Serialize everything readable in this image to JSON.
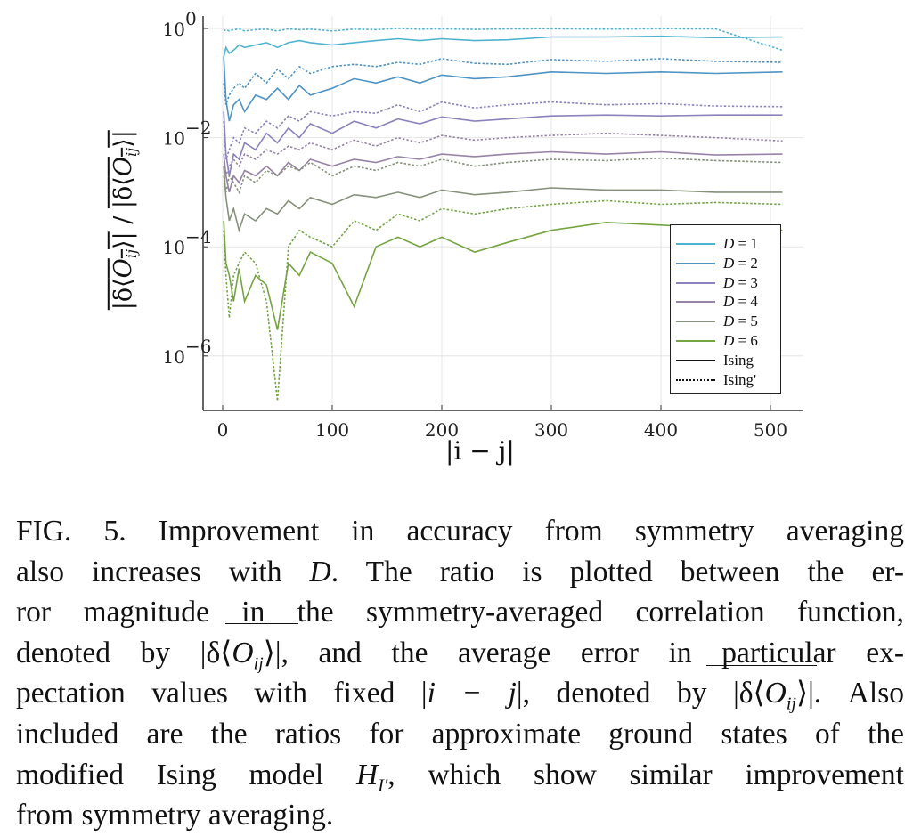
{
  "chart_data": {
    "type": "line",
    "xlabel": "|i − j|",
    "ylabel_parts": [
      "|δ⟨",
      "O",
      "ij",
      "⟩|",
      " / ",
      "|δ⟨",
      "O",
      "ij",
      "⟩|"
    ],
    "xlim": [
      -10,
      530
    ],
    "ylim": [
      1e-07,
      1.7
    ],
    "yscale": "log",
    "grid": true,
    "legend_placement": "bottom-right",
    "x_ticks": [
      0,
      100,
      200,
      300,
      400,
      500
    ],
    "y_ticks": [
      {
        "value": 1,
        "base": "10",
        "exp": "0"
      },
      {
        "value": 0.01,
        "base": "10",
        "exp": "−2"
      },
      {
        "value": 0.0001,
        "base": "10",
        "exp": "−4"
      },
      {
        "value": 1e-06,
        "base": "10",
        "exp": "−6"
      }
    ],
    "legend": [
      {
        "label_var": "D",
        "label_rest": " = 1",
        "color": "#4fb3d0",
        "style": "solid"
      },
      {
        "label_var": "D",
        "label_rest": " = 2",
        "color": "#4e93c2",
        "style": "solid"
      },
      {
        "label_var": "D",
        "label_rest": " = 3",
        "color": "#8a83bc",
        "style": "solid"
      },
      {
        "label_var": "D",
        "label_rest": " = 4",
        "color": "#9683a6",
        "style": "solid"
      },
      {
        "label_var": "D",
        "label_rest": " = 5",
        "color": "#85917a",
        "style": "solid"
      },
      {
        "label_var": "D",
        "label_rest": " = 6",
        "color": "#75a443",
        "style": "solid"
      },
      {
        "label_var": "",
        "label_rest": "Ising",
        "color": "#111111",
        "style": "solid"
      },
      {
        "label_var": "",
        "label_rest": "Ising'",
        "color": "#111111",
        "style": "dashed"
      }
    ],
    "x": [
      1,
      3,
      6,
      10,
      15,
      20,
      30,
      40,
      50,
      60,
      70,
      80,
      100,
      120,
      140,
      160,
      180,
      200,
      230,
      260,
      300,
      350,
      400,
      450,
      511
    ],
    "series": [
      {
        "D": 1,
        "model": "Ising",
        "color": "#4fb3d0",
        "style": "solid",
        "values": [
          0.3,
          0.45,
          0.35,
          0.4,
          0.5,
          0.45,
          0.5,
          0.55,
          0.45,
          0.55,
          0.6,
          0.55,
          0.5,
          0.55,
          0.6,
          0.65,
          0.6,
          0.65,
          0.6,
          0.62,
          0.7,
          0.7,
          0.72,
          0.68,
          0.7
        ]
      },
      {
        "D": 1,
        "model": "Ising'",
        "color": "#4fb3d0",
        "style": "dashed",
        "values": [
          0.9,
          0.95,
          0.9,
          0.95,
          0.98,
          0.9,
          0.95,
          0.97,
          0.9,
          0.98,
          0.95,
          0.97,
          0.9,
          0.97,
          0.95,
          1.0,
          0.97,
          0.98,
          0.96,
          0.98,
          0.99,
          0.97,
          0.99,
          0.98,
          0.4
        ]
      },
      {
        "D": 2,
        "model": "Ising",
        "color": "#4e93c2",
        "style": "solid",
        "values": [
          0.3,
          0.05,
          0.02,
          0.04,
          0.05,
          0.03,
          0.06,
          0.05,
          0.08,
          0.05,
          0.09,
          0.06,
          0.08,
          0.12,
          0.1,
          0.13,
          0.1,
          0.14,
          0.12,
          0.13,
          0.16,
          0.15,
          0.16,
          0.15,
          0.16
        ]
      },
      {
        "D": 2,
        "model": "Ising'",
        "color": "#4e93c2",
        "style": "dashed",
        "values": [
          0.1,
          0.04,
          0.06,
          0.08,
          0.1,
          0.08,
          0.15,
          0.1,
          0.18,
          0.12,
          0.2,
          0.15,
          0.2,
          0.22,
          0.2,
          0.24,
          0.22,
          0.28,
          0.23,
          0.22,
          0.27,
          0.25,
          0.28,
          0.25,
          0.24
        ]
      },
      {
        "D": 3,
        "model": "Ising",
        "color": "#8a83bc",
        "style": "solid",
        "values": [
          0.03,
          0.005,
          0.002,
          0.005,
          0.004,
          0.008,
          0.006,
          0.012,
          0.008,
          0.015,
          0.01,
          0.018,
          0.012,
          0.02,
          0.015,
          0.022,
          0.018,
          0.024,
          0.02,
          0.022,
          0.025,
          0.026,
          0.025,
          0.026,
          0.026
        ]
      },
      {
        "D": 3,
        "model": "Ising'",
        "color": "#8a83bc",
        "style": "dashed",
        "values": [
          0.02,
          0.004,
          0.006,
          0.01,
          0.008,
          0.015,
          0.012,
          0.02,
          0.015,
          0.025,
          0.02,
          0.03,
          0.025,
          0.03,
          0.028,
          0.04,
          0.03,
          0.045,
          0.035,
          0.04,
          0.045,
          0.04,
          0.042,
          0.038,
          0.037
        ]
      },
      {
        "D": 4,
        "model": "Ising",
        "color": "#9683a6",
        "style": "solid",
        "values": [
          0.005,
          0.002,
          0.001,
          0.002,
          0.0015,
          0.0025,
          0.002,
          0.003,
          0.002,
          0.0035,
          0.0025,
          0.004,
          0.003,
          0.004,
          0.0035,
          0.0045,
          0.004,
          0.005,
          0.0045,
          0.005,
          0.0055,
          0.005,
          0.0055,
          0.0048,
          0.005
        ]
      },
      {
        "D": 4,
        "model": "Ising'",
        "color": "#9683a6",
        "style": "dashed",
        "values": [
          0.003,
          0.002,
          0.003,
          0.004,
          0.003,
          0.005,
          0.004,
          0.006,
          0.005,
          0.007,
          0.006,
          0.008,
          0.006,
          0.009,
          0.007,
          0.01,
          0.008,
          0.011,
          0.009,
          0.01,
          0.011,
          0.012,
          0.011,
          0.01,
          0.0087
        ]
      },
      {
        "D": 5,
        "model": "Ising",
        "color": "#85917a",
        "style": "solid",
        "values": [
          0.003,
          0.0008,
          0.0003,
          0.0005,
          0.0002,
          0.0004,
          0.0003,
          0.0005,
          0.0004,
          0.0007,
          0.0005,
          0.0008,
          0.0006,
          0.0009,
          0.0008,
          0.001,
          0.0008,
          0.0011,
          0.0009,
          0.001,
          0.0012,
          0.0011,
          0.0011,
          0.001,
          0.001
        ]
      },
      {
        "D": 5,
        "model": "Ising'",
        "color": "#85917a",
        "style": "dashed",
        "values": [
          0.002,
          0.001,
          0.002,
          0.0015,
          0.001,
          0.002,
          0.0015,
          0.0025,
          0.002,
          0.003,
          0.0025,
          0.0035,
          0.002,
          0.003,
          0.0025,
          0.0035,
          0.003,
          0.004,
          0.003,
          0.0035,
          0.004,
          0.0038,
          0.0042,
          0.0038,
          0.0035
        ]
      },
      {
        "D": 6,
        "model": "Ising",
        "color": "#75a443",
        "style": "solid",
        "values": [
          0.0003,
          5e-05,
          3e-05,
          1e-05,
          4e-05,
          1e-05,
          3e-05,
          2e-05,
          3e-06,
          5e-05,
          3e-05,
          8e-05,
          5e-05,
          8e-06,
          0.0001,
          0.00015,
          0.0001,
          0.00015,
          8e-05,
          0.00012,
          0.0002,
          0.00028,
          0.00025,
          0.00022,
          0.0002
        ]
      },
      {
        "D": 6,
        "model": "Ising'",
        "color": "#75a443",
        "style": "dashed",
        "values": [
          0.0002,
          3e-05,
          5e-06,
          3e-05,
          5e-05,
          8e-05,
          5e-05,
          1e-05,
          1.5e-07,
          0.0001,
          0.0002,
          0.00015,
          0.0001,
          0.0003,
          0.0002,
          0.0004,
          0.0003,
          0.0005,
          0.0004,
          0.0005,
          0.0006,
          0.0007,
          0.0006,
          0.00065,
          0.0006
        ]
      }
    ]
  },
  "caption": {
    "l1": "FIG. 5.  Improvement in accuracy from symmetry averaging",
    "l2a": "also increases with ",
    "l2v": "D",
    "l2b": ".  The ratio is plotted between the er-",
    "l3": "ror magnitude in the symmetry-averaged correlation function,",
    "l4a": "denoted by |δ⟨",
    "l4v": "O",
    "l4s": "ij",
    "l4b": "⟩|, and the average error in particular ex-",
    "l5a": "pectation values with fixed |",
    "l5v": "i − j",
    "l5b": "|, denoted by |δ⟨",
    "l5o": "O",
    "l5s": "ij",
    "l5c": "⟩|.  Also",
    "l6": "included are the ratios for approximate ground states of the",
    "l7a": "modified Ising model ",
    "l7v": "H",
    "l7s": "I′",
    "l7b": ", which show similar improvement",
    "l8": "from symmetry averaging."
  }
}
